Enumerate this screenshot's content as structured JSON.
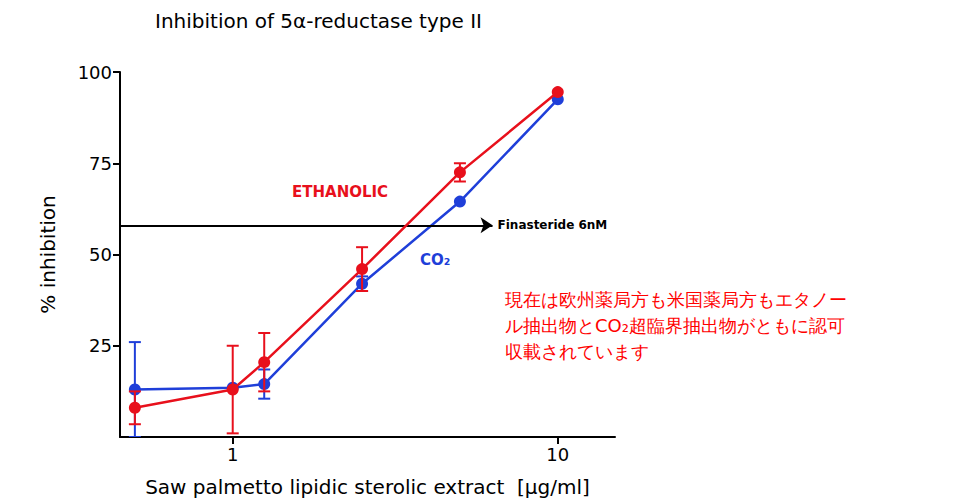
{
  "chart_data": {
    "type": "line",
    "title": "Inhibition of 5α-reductase type II",
    "x_label": "Saw palmetto lipidic sterolic extract  [μg/ml]",
    "y_label": "% inhibition",
    "log": "x",
    "grid": false,
    "xlim": [
      0.45,
      15
    ],
    "xticks": [
      1,
      10
    ],
    "ylim": [
      0,
      100
    ],
    "yticks": [
      25,
      50,
      75,
      100
    ],
    "x": [
      0.5,
      1,
      1.25,
      2.5,
      5,
      10
    ],
    "series": [
      {
        "name": "CO₂",
        "color": "#1f3fd9",
        "marker": "circle",
        "line_style": "solid",
        "values": [
          13,
          13.5,
          14.5,
          42,
          64.5,
          92.5
        ],
        "errors": [
          13,
          0,
          4,
          2,
          0,
          0
        ]
      },
      {
        "name": "ETHANOLIC",
        "color": "#e8101c",
        "marker": "circle",
        "line_style": "solid",
        "values": [
          8,
          13,
          20.5,
          46,
          72.5,
          94.5
        ],
        "errors": [
          4.5,
          12,
          8,
          6,
          2.5,
          0
        ]
      }
    ],
    "reference_line": {
      "label": "Finasteride 6nM",
      "y": 58,
      "x": [
        0.45,
        6.3
      ]
    },
    "annotation": [
      "現在は欧州薬局方も米国薬局方もエタノー",
      "ル抽出物とCO₂超臨界抽出物がともに認可",
      "収載されています"
    ]
  }
}
